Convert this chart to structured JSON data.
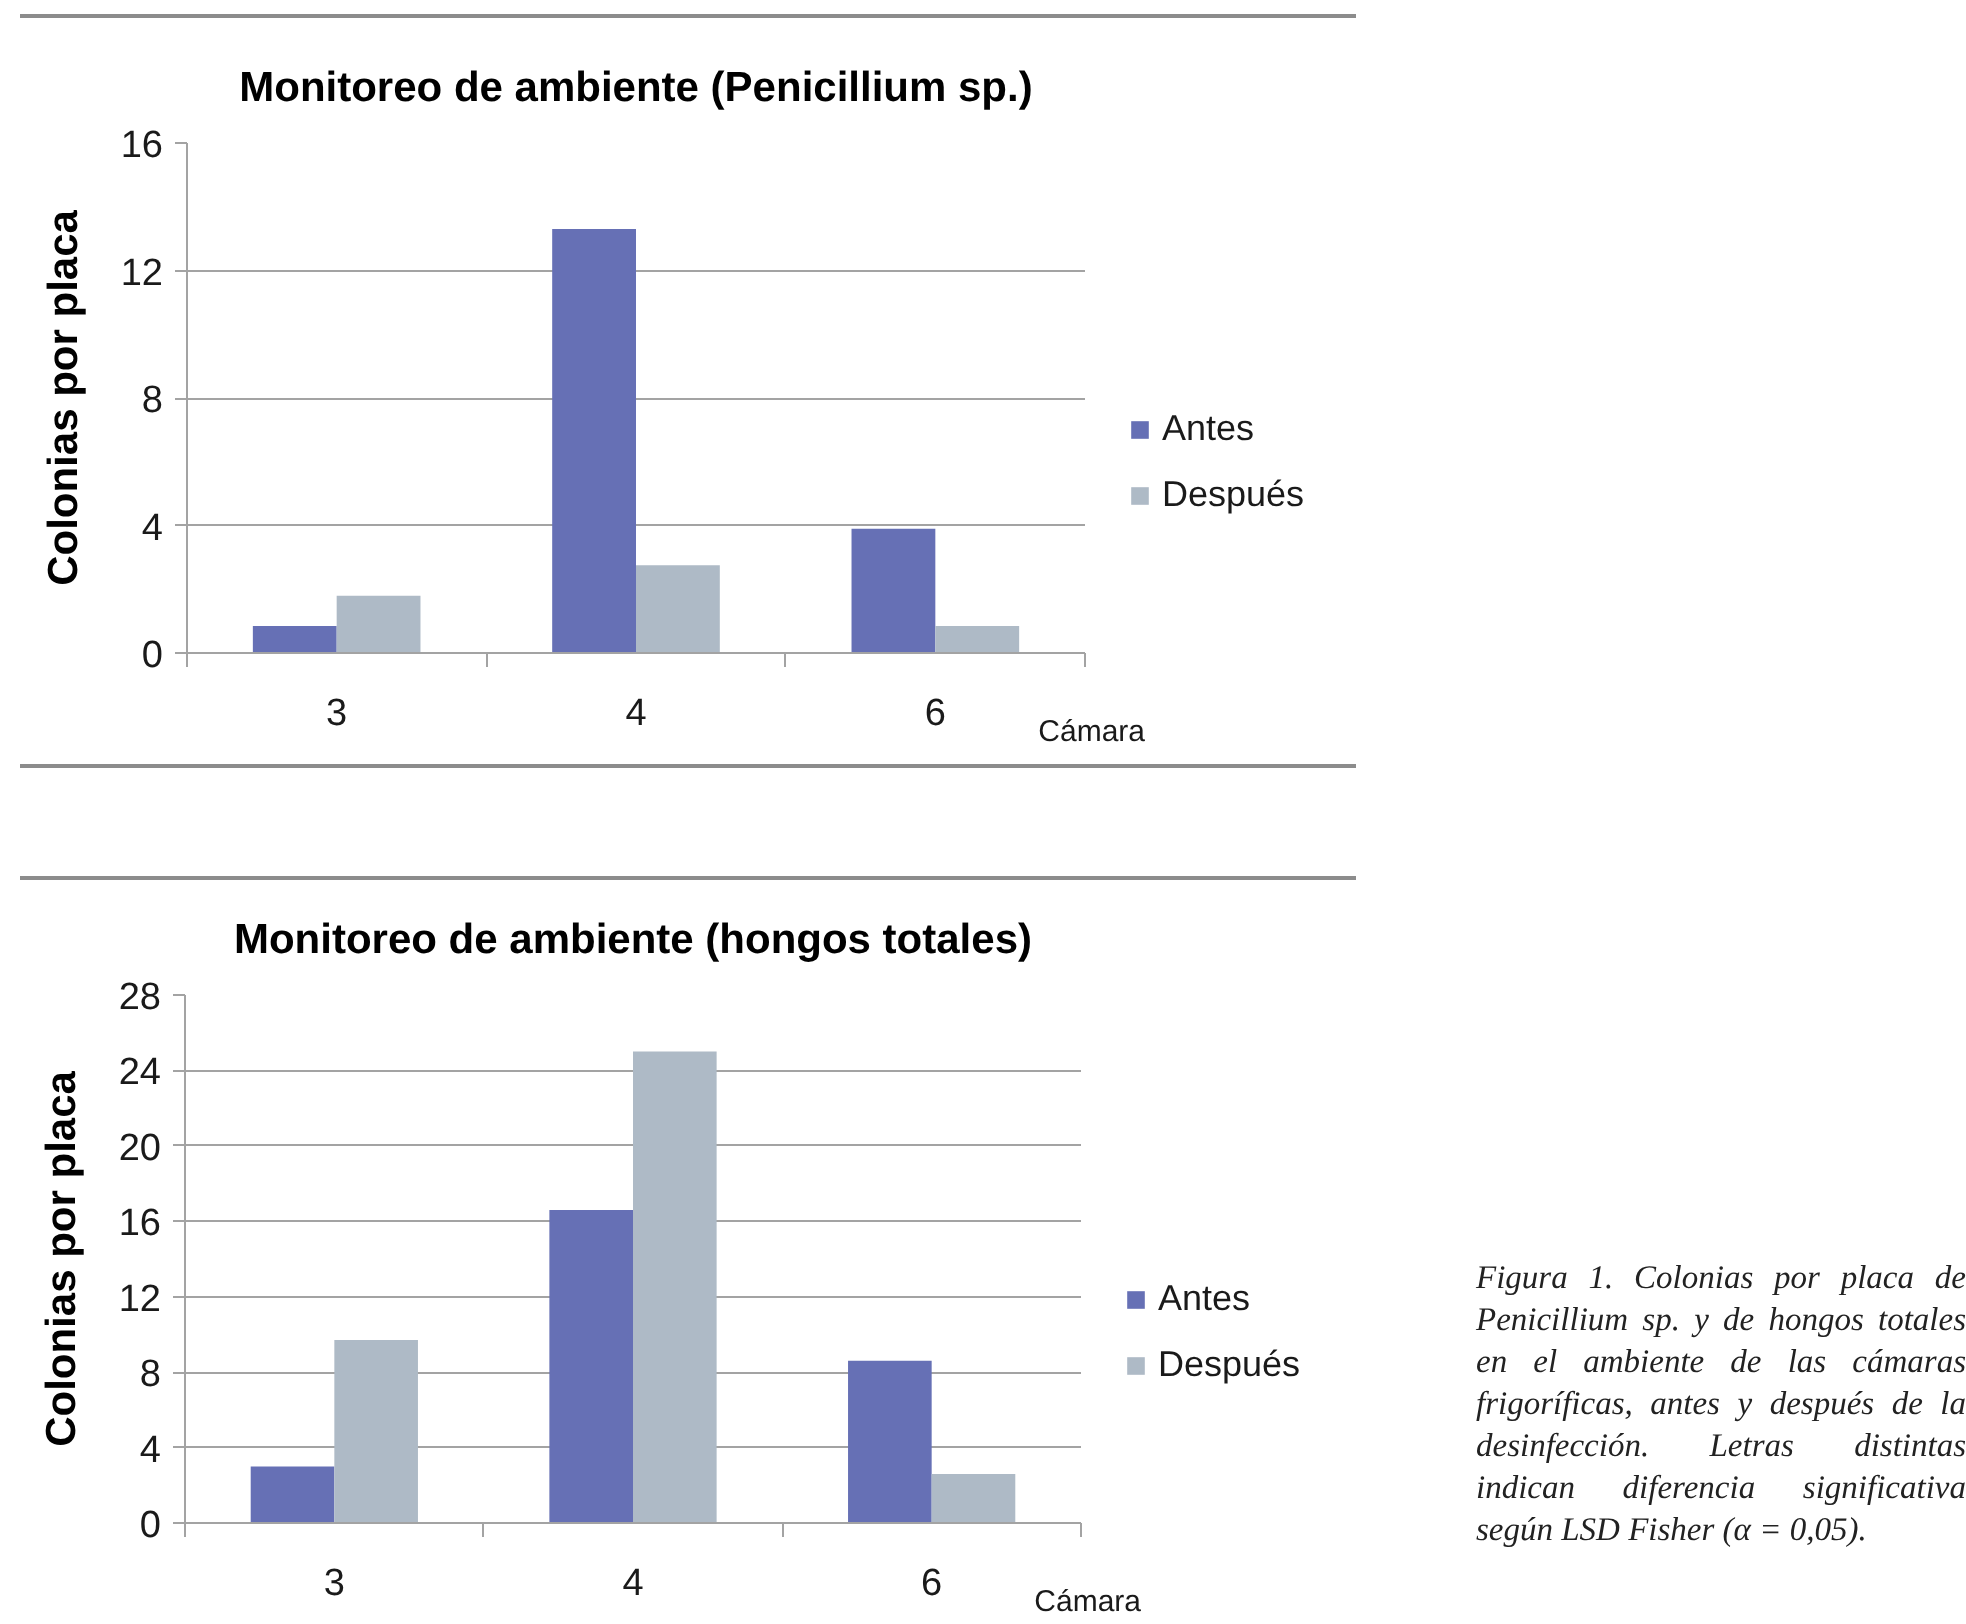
{
  "chart_data": [
    {
      "type": "bar",
      "title": "Monitoreo de ambiente (Penicillium sp.)",
      "xlabel": "Cámara",
      "ylabel": "Colonias por placa",
      "categories": [
        "3",
        "4",
        "6"
      ],
      "series": [
        {
          "name": "Antes",
          "color": "#6670b5",
          "values": [
            0.85,
            13.3,
            3.9
          ]
        },
        {
          "name": "Después",
          "color": "#aebac6",
          "values": [
            1.8,
            2.75,
            0.85
          ]
        }
      ],
      "ylim": [
        0,
        16
      ],
      "yticks": [
        0,
        4,
        8,
        12,
        16
      ],
      "grid": "y",
      "legend": "right"
    },
    {
      "type": "bar",
      "title": "Monitoreo de ambiente (hongos totales)",
      "xlabel": "Cámara",
      "ylabel": "Colonias por placa",
      "categories": [
        "3",
        "4",
        "6"
      ],
      "series": [
        {
          "name": "Antes",
          "color": "#6670b5",
          "values": [
            3.0,
            16.6,
            8.6
          ]
        },
        {
          "name": "Después",
          "color": "#aebac6",
          "values": [
            9.7,
            25.0,
            2.6
          ]
        }
      ],
      "ylim": [
        0,
        28
      ],
      "yticks": [
        0,
        4,
        8,
        12,
        16,
        20,
        24,
        28
      ],
      "grid": "y",
      "legend": "right",
      "annotations": [
        "Figura 1. Colonias por placa de Penicillium sp. y de hongos totales en el ambiente de las cámaras frigoríficas, antes y después de la desinfección. Letras distintas indican diferencia significativa según LSD Fisher (α = 0,05)."
      ]
    }
  ]
}
